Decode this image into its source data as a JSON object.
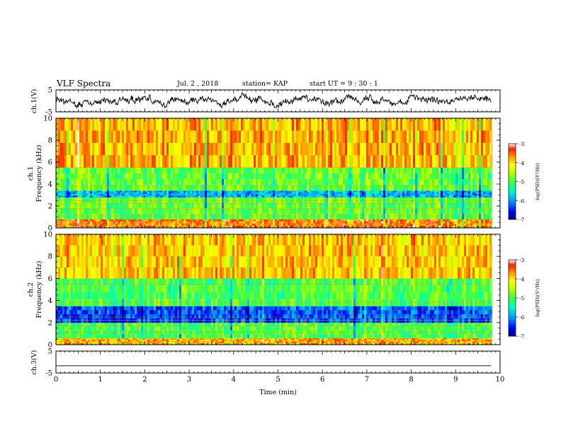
{
  "header": {
    "title": "VLF Spectra",
    "date": "Jul. 2 , 2018",
    "station": "station= KAP",
    "start_ut": "start UT =  9 : 30 : 1"
  },
  "colors": {
    "scale": [
      "#000080",
      "#0000ff",
      "#00a0ff",
      "#00ffc0",
      "#40ff40",
      "#c0ff00",
      "#ffff00",
      "#ffa000",
      "#ff2000",
      "#ffffff"
    ]
  },
  "chart_data": [
    {
      "type": "line",
      "panel": "ch1-waveform",
      "ylabel": "ch.1(V)",
      "ylim": [
        -5,
        5
      ],
      "yticks": [
        5,
        -5
      ],
      "xlim": [
        0,
        10
      ],
      "note_values": "signal fluctuates roughly between -3 and 4 V"
    },
    {
      "type": "heatmap",
      "panel": "ch1-spectrogram",
      "ylabel": "ch.1 Frequency (kHz)",
      "ylim": [
        0,
        10
      ],
      "yticks": [
        0,
        2,
        4,
        6,
        8,
        10
      ],
      "xlim": [
        0,
        10
      ],
      "colorbar": {
        "label": "log(PSD)(V²/Hz)",
        "ticks": [
          -3,
          -4,
          -5,
          -6,
          -7
        ],
        "range": [
          -7,
          -3
        ]
      },
      "bands_log_psd": [
        {
          "f": [
            0,
            0.8
          ],
          "value": -3.6
        },
        {
          "f": [
            0.8,
            2.8
          ],
          "value": -4.9
        },
        {
          "f": [
            2.8,
            3.4
          ],
          "value": -5.9
        },
        {
          "f": [
            3.4,
            5.5
          ],
          "value": -4.9
        },
        {
          "f": [
            5.5,
            10
          ],
          "value": -3.8
        }
      ]
    },
    {
      "type": "heatmap",
      "panel": "ch2-spectrogram",
      "ylabel": "ch.2 Frequency (kHz)",
      "ylim": [
        0,
        10
      ],
      "yticks": [
        0,
        2,
        4,
        6,
        8,
        10
      ],
      "xlim": [
        0,
        10
      ],
      "colorbar": {
        "label": "log(PSD)(V²/Hz)",
        "ticks": [
          -3,
          -4,
          -5,
          -6,
          -7
        ],
        "range": [
          -7,
          -3
        ]
      },
      "bands_log_psd": [
        {
          "f": [
            0,
            0.6
          ],
          "value": -3.8
        },
        {
          "f": [
            0.6,
            2.0
          ],
          "value": -5.0
        },
        {
          "f": [
            2.0,
            3.5
          ],
          "value": -6.3
        },
        {
          "f": [
            3.5,
            6.0
          ],
          "value": -5.0
        },
        {
          "f": [
            6.0,
            10
          ],
          "value": -3.9
        }
      ]
    },
    {
      "type": "line",
      "panel": "ch3-waveform",
      "ylabel": "ch.3(V)",
      "ylim": [
        -5,
        5
      ],
      "yticks": [
        5,
        -5
      ],
      "xlim": [
        0,
        10
      ],
      "constant_value": -1.7,
      "xlabel": "Time (min)",
      "xticks": [
        0,
        1,
        2,
        3,
        4,
        5,
        6,
        7,
        8,
        9,
        10
      ]
    }
  ]
}
